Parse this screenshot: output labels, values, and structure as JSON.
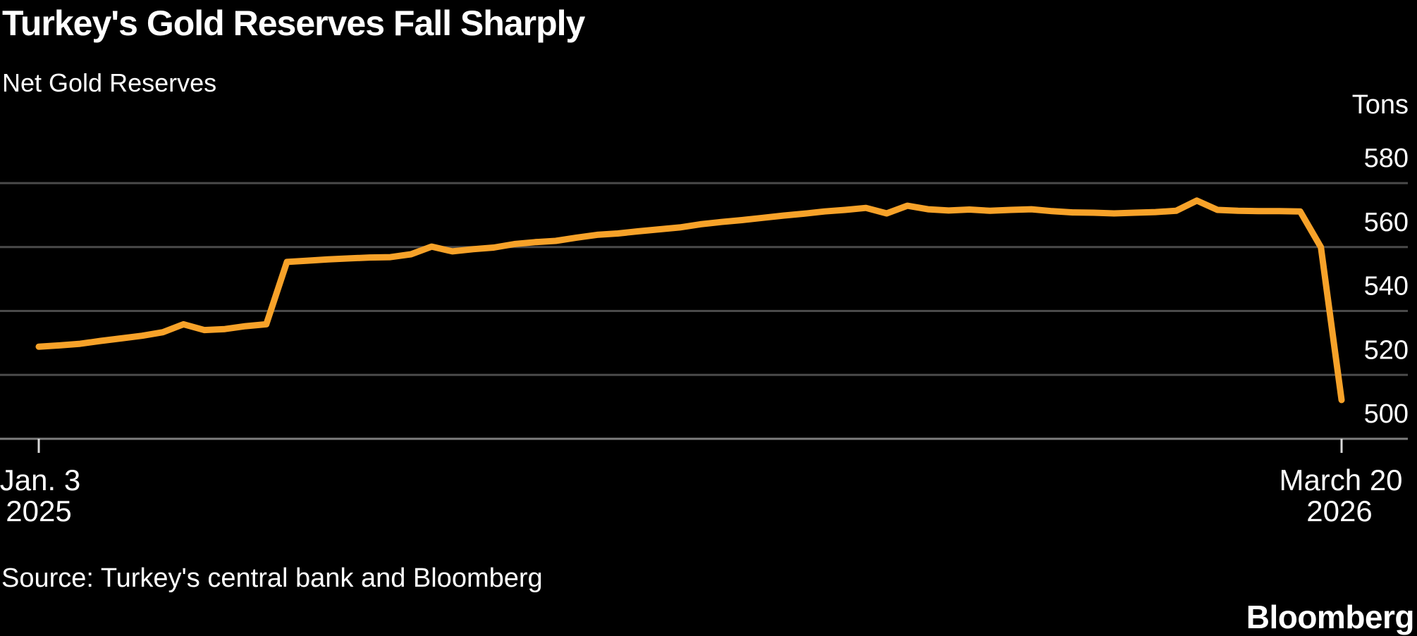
{
  "chart_data": {
    "type": "line",
    "title": "Turkey's Gold Reserves Fall Sharply",
    "subtitle": "Net Gold Reserves",
    "unit": "Tons",
    "x_axis": {
      "start": [
        "Jan. 3",
        "2025"
      ],
      "end": [
        "March 20",
        "2026"
      ],
      "start_date": "2025-01-03",
      "end_date": "2026-03-20",
      "frequency": "weekly",
      "points": 64
    },
    "y_ticks": [
      580,
      560,
      540,
      520,
      500
    ],
    "ylim": [
      500,
      580
    ],
    "grid": "horizontal-only",
    "legend": "none",
    "series": [
      {
        "name": "Net Gold Reserves",
        "color": "#F7A229",
        "values": [
          520.9,
          521.3,
          521.8,
          522.7,
          523.5,
          524.3,
          525.4,
          527.9,
          526.1,
          526.4,
          527.3,
          527.9,
          547.4,
          547.8,
          548.2,
          548.5,
          548.8,
          548.9,
          549.8,
          552.2,
          550.7,
          551.4,
          551.9,
          553.0,
          553.6,
          554.0,
          555.0,
          555.9,
          556.3,
          557.0,
          557.6,
          558.2,
          559.2,
          559.9,
          560.5,
          561.2,
          561.9,
          562.5,
          563.2,
          563.7,
          564.3,
          562.6,
          565.0,
          563.9,
          563.5,
          563.8,
          563.4,
          563.7,
          563.9,
          563.3,
          562.9,
          562.8,
          562.6,
          562.8,
          563.0,
          563.4,
          566.6,
          563.7,
          563.4,
          563.3,
          563.3,
          563.2,
          552.0,
          504.2
        ]
      }
    ]
  },
  "footer": {
    "source": "Source: Turkey's central bank and Bloomberg",
    "brand": "Bloomberg"
  },
  "colors": {
    "background": "#000000",
    "text": "#FFFFFF",
    "line": "#F7A229",
    "gridline": "#4A4A4A",
    "axis_line": "#7D7D7D",
    "tick_mark": "#D9D9D9"
  }
}
